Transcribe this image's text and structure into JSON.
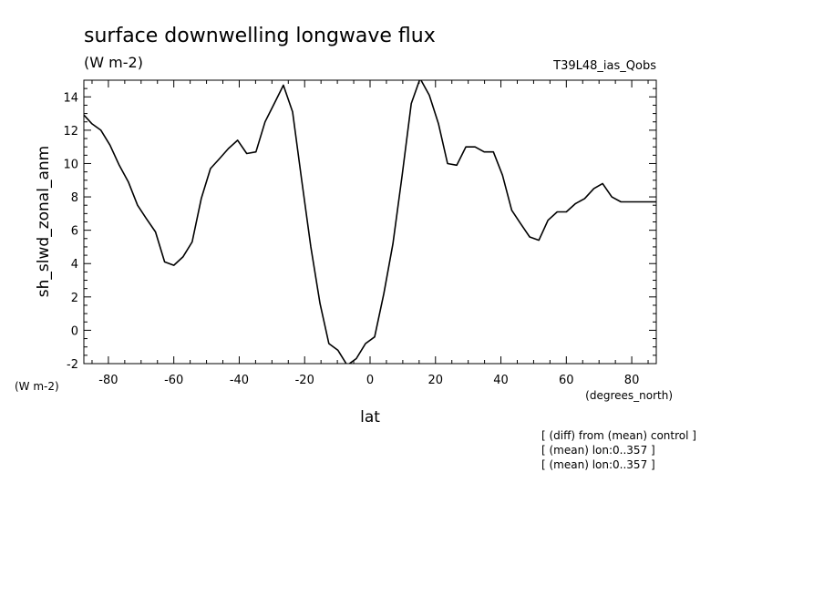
{
  "chart_data": {
    "type": "line",
    "title": "surface downwelling longwave flux",
    "subtitle": "(W m-2)",
    "experiment": "T39L48_ias_Qobs",
    "ylabel": "sh_slwd_zonal_anm",
    "xlabel": "lat",
    "yunits": "(W m-2)",
    "xunits": "(degrees_north)",
    "xlim": [
      -87.5,
      87.5
    ],
    "ylim": [
      -2,
      15
    ],
    "xticks": [
      -80,
      -60,
      -40,
      -20,
      0,
      20,
      40,
      60,
      80
    ],
    "yticks": [
      -2,
      0,
      2,
      4,
      6,
      8,
      10,
      12,
      14
    ],
    "grid": false,
    "notes": [
      "[ (diff) from (mean) control ]",
      "[ (mean) lon:0..357 ]",
      "[ (mean) lon:0..357 ]"
    ],
    "series": [
      {
        "x": [
          -87.9,
          -85.1,
          -82.3,
          -79.5,
          -76.7,
          -73.9,
          -71.1,
          -68.4,
          -65.6,
          -62.8,
          -60.0,
          -57.2,
          -54.4,
          -51.6,
          -48.8,
          -46.0,
          -43.3,
          -40.5,
          -37.7,
          -34.9,
          -32.1,
          -29.3,
          -26.5,
          -23.7,
          -20.9,
          -18.1,
          -15.3,
          -12.6,
          -9.8,
          -7.0,
          -4.2,
          -1.4,
          1.4,
          4.2,
          7.0,
          9.8,
          12.6,
          15.3,
          18.1,
          20.9,
          23.7,
          26.5,
          29.3,
          32.1,
          34.9,
          37.7,
          40.5,
          43.3,
          46.0,
          48.8,
          51.6,
          54.4,
          57.2,
          60.0,
          62.8,
          65.6,
          68.4,
          71.1,
          73.9,
          76.7,
          79.5,
          82.3,
          85.1,
          87.9
        ],
        "y": [
          13.0,
          12.4,
          12.0,
          11.1,
          9.9,
          8.9,
          7.5,
          6.7,
          5.9,
          4.1,
          3.9,
          4.4,
          5.3,
          7.9,
          9.7,
          10.3,
          10.9,
          11.4,
          10.6,
          10.7,
          12.5,
          13.6,
          14.7,
          13.1,
          9.0,
          5.0,
          1.6,
          -0.8,
          -1.2,
          -2.1,
          -1.7,
          -0.8,
          -0.4,
          2.2,
          5.2,
          9.3,
          13.6,
          15.1,
          14.1,
          12.4,
          10.0,
          9.9,
          11.0,
          11.0,
          10.7,
          10.7,
          9.3,
          7.2,
          6.4,
          5.6,
          5.4,
          6.6,
          7.1,
          7.1,
          7.6,
          7.9,
          8.5,
          8.8,
          8.0,
          7.7,
          7.7,
          7.7,
          7.7,
          7.7
        ]
      }
    ]
  }
}
